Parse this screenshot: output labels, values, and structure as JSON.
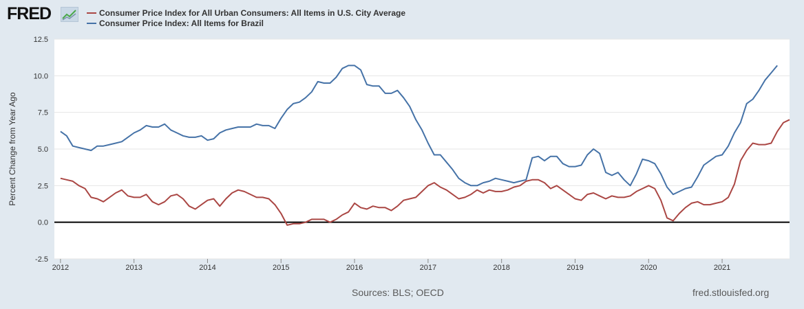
{
  "header": {
    "logo_text": "FRED",
    "logo_icon": "line-chart-icon"
  },
  "footer": {
    "sources": "Sources: BLS; OECD",
    "site": "fred.stlouisfed.org"
  },
  "chart_data": {
    "type": "line",
    "title": "",
    "xlabel": "",
    "ylabel": "Percent Change from Year Ago",
    "xlim": [
      2011.917,
      2021.917
    ],
    "ylim": [
      -2.5,
      12.5
    ],
    "yticks": [
      -2.5,
      0.0,
      2.5,
      5.0,
      7.5,
      10.0,
      12.5
    ],
    "ytick_labels": [
      "-2.5",
      "0.0",
      "2.5",
      "5.0",
      "7.5",
      "10.0",
      "12.5"
    ],
    "xticks": [
      2012,
      2013,
      2014,
      2015,
      2016,
      2017,
      2018,
      2019,
      2020,
      2021
    ],
    "xtick_labels": [
      "2012",
      "2013",
      "2014",
      "2015",
      "2016",
      "2017",
      "2018",
      "2019",
      "2020",
      "2021"
    ],
    "zero_line": true,
    "grid": "horizontal",
    "legend_position": "top-left",
    "series": [
      {
        "name": "Consumer Price Index for All Urban Consumers: All Items in U.S. City Average",
        "color": "#aa4643",
        "start": "2012-01",
        "frequency": "monthly",
        "values": [
          3.0,
          2.9,
          2.8,
          2.5,
          2.3,
          1.7,
          1.6,
          1.4,
          1.7,
          2.0,
          2.2,
          1.8,
          1.7,
          1.7,
          1.9,
          1.4,
          1.2,
          1.4,
          1.8,
          1.9,
          1.6,
          1.1,
          0.9,
          1.2,
          1.5,
          1.6,
          1.1,
          1.6,
          2.0,
          2.2,
          2.1,
          1.9,
          1.7,
          1.7,
          1.6,
          1.2,
          0.6,
          -0.2,
          -0.1,
          -0.1,
          0.0,
          0.2,
          0.2,
          0.2,
          0.0,
          0.2,
          0.5,
          0.7,
          1.3,
          1.0,
          0.9,
          1.1,
          1.0,
          1.0,
          0.8,
          1.1,
          1.5,
          1.6,
          1.7,
          2.1,
          2.5,
          2.7,
          2.4,
          2.2,
          1.9,
          1.6,
          1.7,
          1.9,
          2.2,
          2.0,
          2.2,
          2.1,
          2.1,
          2.2,
          2.4,
          2.5,
          2.8,
          2.9,
          2.9,
          2.7,
          2.3,
          2.5,
          2.2,
          1.9,
          1.6,
          1.5,
          1.9,
          2.0,
          1.8,
          1.6,
          1.8,
          1.7,
          1.7,
          1.8,
          2.1,
          2.3,
          2.5,
          2.3,
          1.5,
          0.3,
          0.1,
          0.6,
          1.0,
          1.3,
          1.4,
          1.2,
          1.2,
          1.3,
          1.4,
          1.7,
          2.6,
          4.2,
          4.9,
          5.4,
          5.3,
          5.3,
          5.4,
          6.2,
          6.8,
          7.0
        ]
      },
      {
        "name": "Consumer Price Index: All Items for Brazil",
        "color": "#4572a7",
        "start": "2012-01",
        "frequency": "monthly",
        "values": [
          6.2,
          5.9,
          5.2,
          5.1,
          5.0,
          4.9,
          5.2,
          5.2,
          5.3,
          5.4,
          5.5,
          5.8,
          6.1,
          6.3,
          6.6,
          6.5,
          6.5,
          6.7,
          6.3,
          6.1,
          5.9,
          5.8,
          5.8,
          5.9,
          5.6,
          5.7,
          6.1,
          6.3,
          6.4,
          6.5,
          6.5,
          6.5,
          6.7,
          6.6,
          6.6,
          6.4,
          7.1,
          7.7,
          8.1,
          8.2,
          8.5,
          8.9,
          9.6,
          9.5,
          9.5,
          9.9,
          10.5,
          10.7,
          10.7,
          10.4,
          9.4,
          9.3,
          9.3,
          8.8,
          8.8,
          9.0,
          8.5,
          7.9,
          7.0,
          6.3,
          5.4,
          4.6,
          4.6,
          4.1,
          3.6,
          3.0,
          2.7,
          2.5,
          2.5,
          2.7,
          2.8,
          3.0,
          2.9,
          2.8,
          2.7,
          2.8,
          2.9,
          4.4,
          4.5,
          4.2,
          4.5,
          4.5,
          4.0,
          3.8,
          3.8,
          3.9,
          4.6,
          5.0,
          4.7,
          3.4,
          3.2,
          3.4,
          2.9,
          2.5,
          3.3,
          4.3,
          4.2,
          4.0,
          3.3,
          2.4,
          1.9,
          2.1,
          2.3,
          2.4,
          3.1,
          3.9,
          4.2,
          4.5,
          4.6,
          5.2,
          6.1,
          6.8,
          8.1,
          8.4,
          9.0,
          9.7,
          10.2,
          10.7
        ]
      }
    ]
  }
}
